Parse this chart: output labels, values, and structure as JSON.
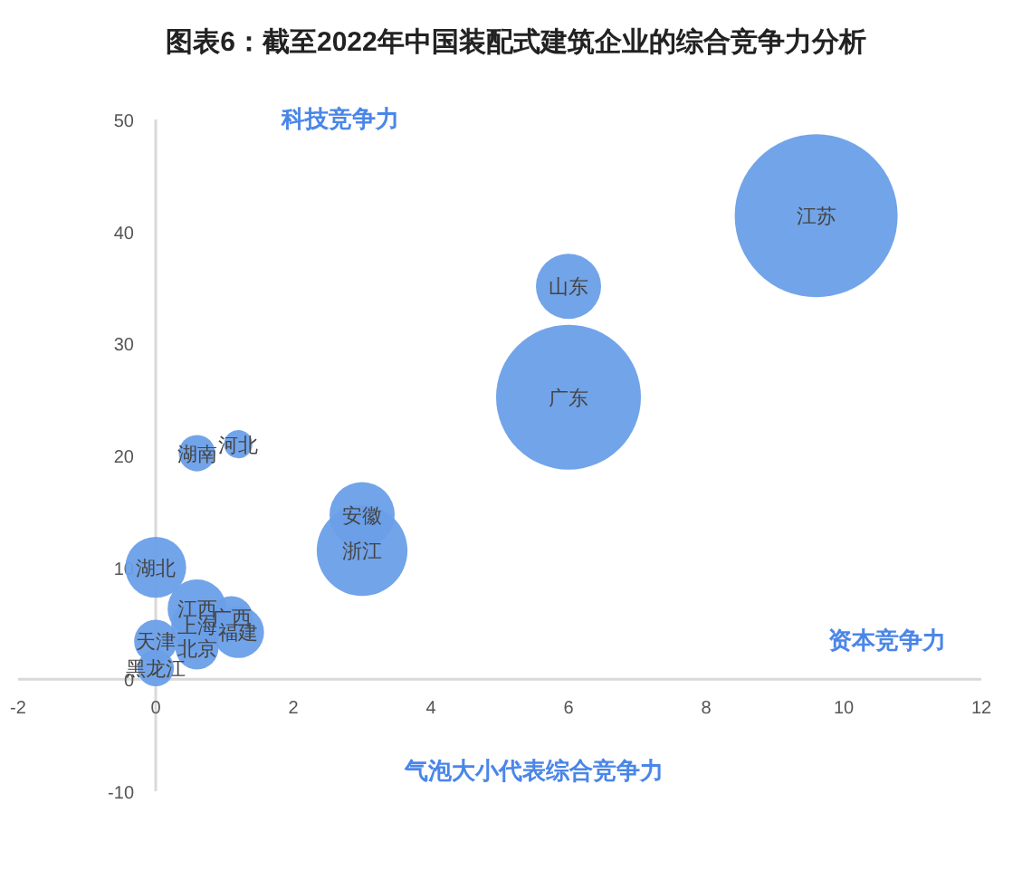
{
  "chart_data": {
    "type": "bubble",
    "title": "图表6：截至2022年中国装配式建筑企业的综合竞争力分析",
    "xlabel": "资本竞争力",
    "ylabel": "科技竞争力",
    "annotations": [
      "气泡大小代表综合竞争力"
    ],
    "xlim": [
      -2,
      12
    ],
    "xticks": [
      -2,
      0,
      2,
      4,
      6,
      8,
      10,
      12
    ],
    "ylim": [
      -10,
      50
    ],
    "yticks": [
      -10,
      0,
      10,
      20,
      30,
      40,
      50
    ],
    "grid": false,
    "series": [
      {
        "name": "江苏",
        "color": "#6a9fe8",
        "x": [
          9.6
        ],
        "values": [
          41.4
        ],
        "sizes": [
          1
        ]
      },
      {
        "name": "广东",
        "color": "#6a9fe8",
        "x": [
          6.0
        ],
        "values": [
          25.2
        ],
        "sizes": [
          0.79
        ]
      },
      {
        "name": "山东",
        "color": "#6a9fe8",
        "x": [
          6.0
        ],
        "values": [
          35.1
        ],
        "sizes": [
          0.16
        ]
      },
      {
        "name": "浙江",
        "color": "#6a9fe8",
        "x": [
          3.0
        ],
        "values": [
          11.5
        ],
        "sizes": [
          0.31
        ]
      },
      {
        "name": "安徽",
        "color": "#6a9fe8",
        "x": [
          3.0
        ],
        "values": [
          14.7
        ],
        "sizes": [
          0.16
        ]
      },
      {
        "name": "湖南",
        "color": "#6a9fe8",
        "x": [
          0.6
        ],
        "values": [
          20.2
        ],
        "sizes": [
          0.05
        ]
      },
      {
        "name": "河北",
        "color": "#6a9fe8",
        "x": [
          1.2
        ],
        "values": [
          21.0
        ],
        "sizes": [
          0.03
        ]
      },
      {
        "name": "湖北",
        "color": "#6a9fe8",
        "x": [
          0.0
        ],
        "values": [
          10.0
        ],
        "sizes": [
          0.14
        ]
      },
      {
        "name": "江西",
        "color": "#6a9fe8",
        "x": [
          0.6
        ],
        "values": [
          6.3
        ],
        "sizes": [
          0.13
        ]
      },
      {
        "name": "广西",
        "color": "#6a9fe8",
        "x": [
          1.1
        ],
        "values": [
          5.5
        ],
        "sizes": [
          0.07
        ]
      },
      {
        "name": "上海",
        "color": "#6a9fe8",
        "x": [
          0.6
        ],
        "values": [
          4.8
        ],
        "sizes": [
          0.1
        ]
      },
      {
        "name": "福建",
        "color": "#6a9fe8",
        "x": [
          1.2
        ],
        "values": [
          4.2
        ],
        "sizes": [
          0.1
        ]
      },
      {
        "name": "天津",
        "color": "#6a9fe8",
        "x": [
          0.0
        ],
        "values": [
          3.4
        ],
        "sizes": [
          0.07
        ]
      },
      {
        "name": "北京",
        "color": "#6a9fe8",
        "x": [
          0.6
        ],
        "values": [
          2.8
        ],
        "sizes": [
          0.07
        ]
      },
      {
        "name": "黑龙江",
        "color": "#6a9fe8",
        "x": [
          0.0
        ],
        "values": [
          1.0
        ],
        "sizes": [
          0.05
        ]
      }
    ]
  }
}
